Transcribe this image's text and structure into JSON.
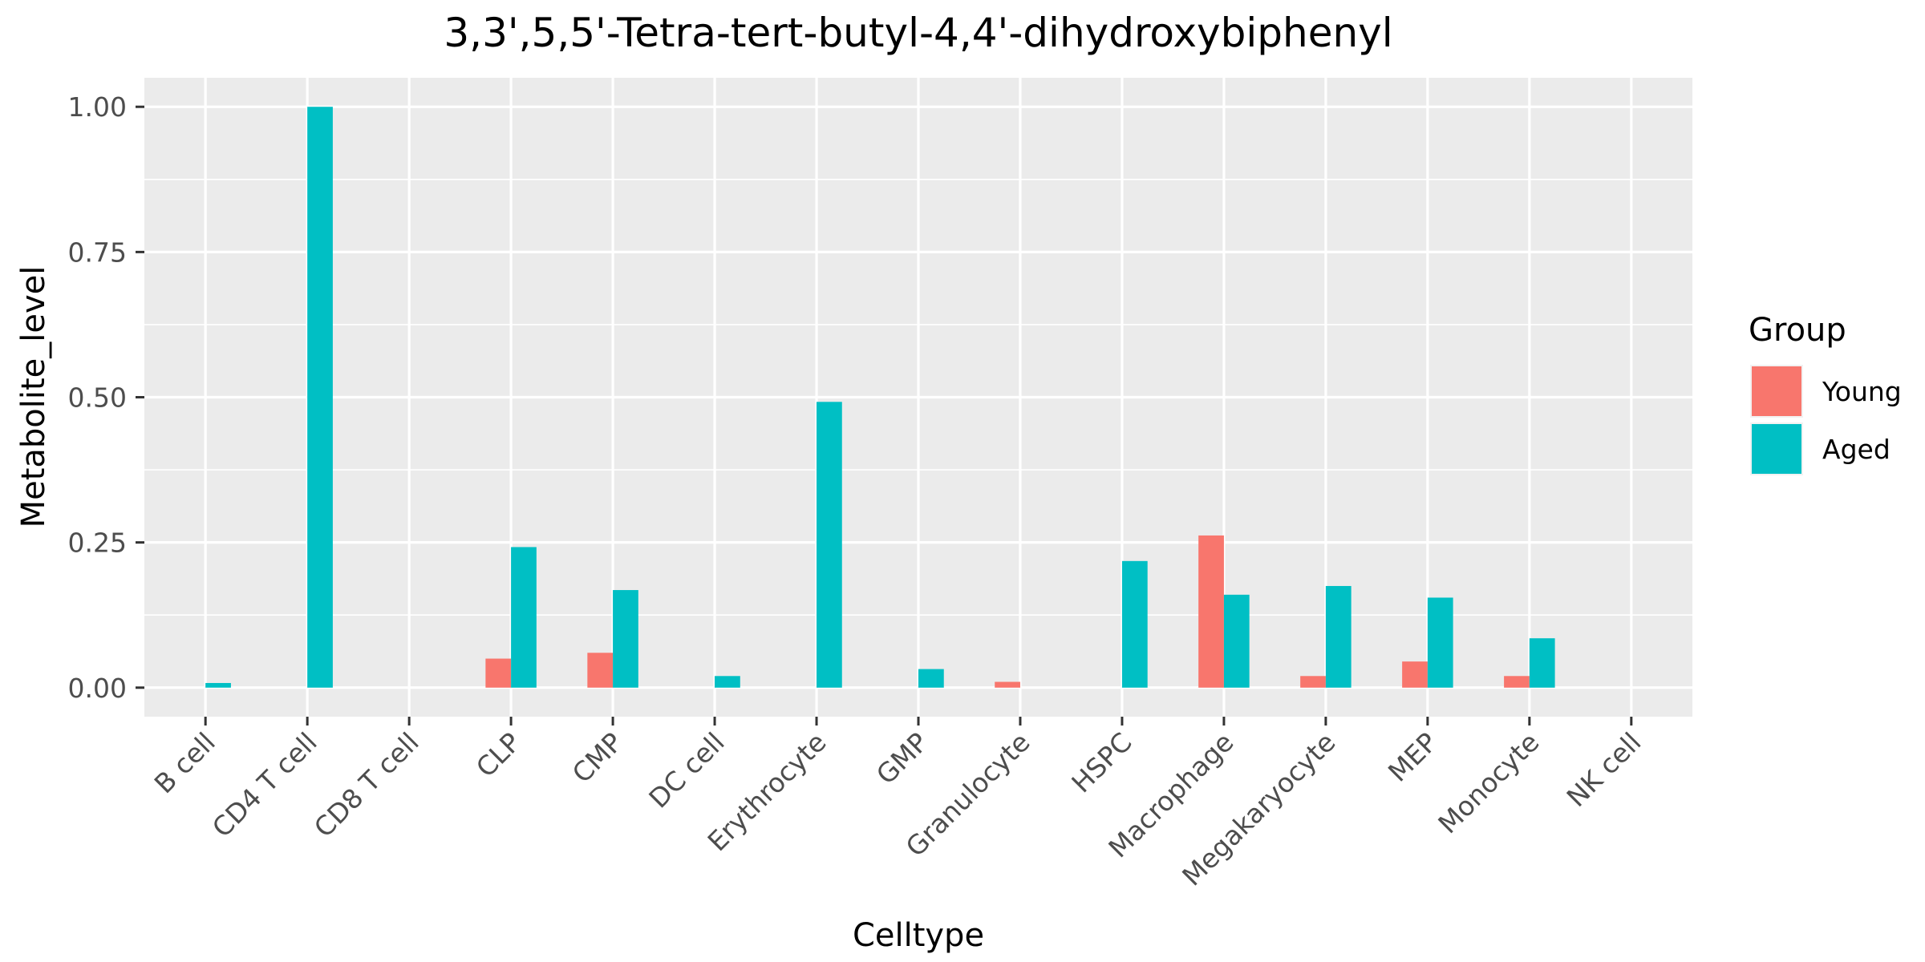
{
  "chart_data": {
    "type": "bar",
    "title": "3,3',5,5'-Tetra-tert-butyl-4,4'-dihydroxybiphenyl",
    "xlabel": "Celltype",
    "ylabel": "Metabolite_level",
    "ylim": [
      -0.05,
      1.05
    ],
    "yticks": [
      0.0,
      0.25,
      0.5,
      0.75,
      1.0
    ],
    "ytick_labels": [
      "0.00",
      "0.25",
      "0.50",
      "0.75",
      "1.00"
    ],
    "grid": true,
    "legend_position": "right",
    "legend_title": "Group",
    "categories": [
      "B cell",
      "CD4 T cell",
      "CD8 T cell",
      "CLP",
      "CMP",
      "DC cell",
      "Erythrocyte",
      "GMP",
      "Granulocyte",
      "HSPC",
      "Macrophage",
      "Megakaryocyte",
      "MEP",
      "Monocyte",
      "NK cell"
    ],
    "series": [
      {
        "name": "Young",
        "color": "#F8766D",
        "values": [
          0,
          0,
          0,
          0.05,
          0.06,
          0,
          0,
          0,
          0.01,
          0,
          0.262,
          0.02,
          0.045,
          0.02,
          0
        ]
      },
      {
        "name": "Aged",
        "color": "#00BFC4",
        "values": [
          0.008,
          1.0,
          0,
          0.242,
          0.168,
          0.02,
          0.492,
          0.032,
          0,
          0.218,
          0.16,
          0.175,
          0.155,
          0.085,
          0
        ]
      }
    ]
  }
}
